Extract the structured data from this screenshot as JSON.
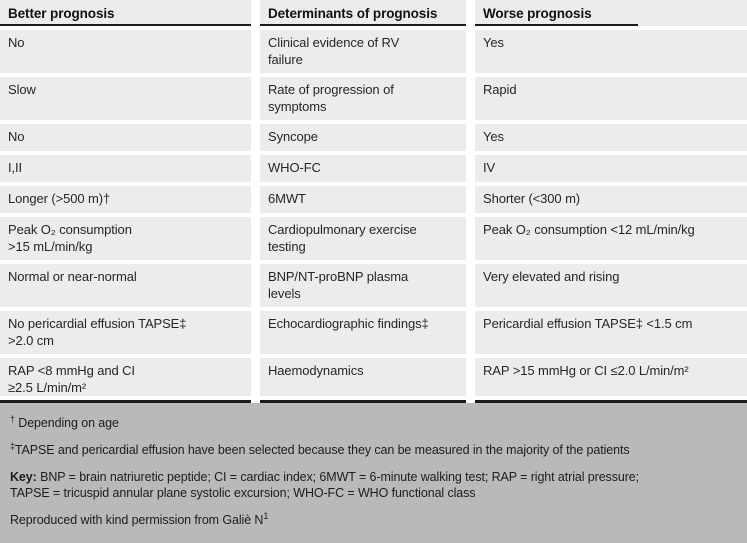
{
  "table": {
    "headers": {
      "better": "Better prognosis",
      "determinants": "Determinants of prognosis",
      "worse": "Worse prognosis"
    },
    "rows": [
      {
        "better": "No",
        "determinant": "Clinical evidence of RV\nfailure",
        "worse": "Yes"
      },
      {
        "better": "Slow",
        "determinant": "Rate of progression of\nsymptoms",
        "worse": "Rapid"
      },
      {
        "better": "No",
        "determinant": "Syncope",
        "worse": "Yes"
      },
      {
        "better": "I,II",
        "determinant": "WHO-FC",
        "worse": "IV"
      },
      {
        "better": "Longer (>500 m)†",
        "determinant": "6MWT",
        "worse": "Shorter (<300 m)"
      },
      {
        "better": "Peak O₂ consumption\n>15 mL/min/kg",
        "determinant": "Cardiopulmonary exercise\ntesting",
        "worse": "Peak O₂ consumption <12 mL/min/kg"
      },
      {
        "better": "Normal or near-normal",
        "determinant": "BNP/NT-proBNP plasma\nlevels",
        "worse": "Very elevated and rising"
      },
      {
        "better": "No pericardial effusion TAPSE‡\n>2.0 cm",
        "determinant": "Echocardiographic findings‡",
        "worse": "Pericardial effusion TAPSE‡ <1.5 cm"
      },
      {
        "better": "RAP <8 mmHg and CI\n≥2.5 L/min/m²",
        "determinant": "Haemodynamics",
        "worse": "RAP >15 mmHg or CI ≤2.0 L/min/m²"
      }
    ]
  },
  "footer": {
    "footnote_dagger": {
      "marker": "†",
      "text": " Depending on age"
    },
    "footnote_double_dagger": {
      "marker": "‡",
      "text": "TAPSE and pericardial effusion have been selected because they can be measured in the majority of the patients"
    },
    "key": {
      "label": "Key:",
      "line1": " BNP = brain natriuretic peptide; CI = cardiac index; 6MWT = 6-minute walking test; RAP = right atrial pressure;",
      "line2": "TAPSE = tricuspid annular plane systolic excursion; WHO-FC = WHO functional class"
    },
    "attribution": {
      "text": "Reproduced with kind permission from Galiè N",
      "marker": "1"
    }
  },
  "colors": {
    "cell_background": "#ececeb",
    "footer_background": "#b9b9b7",
    "rule_black": "#1c1c1c",
    "text": "#262626"
  }
}
